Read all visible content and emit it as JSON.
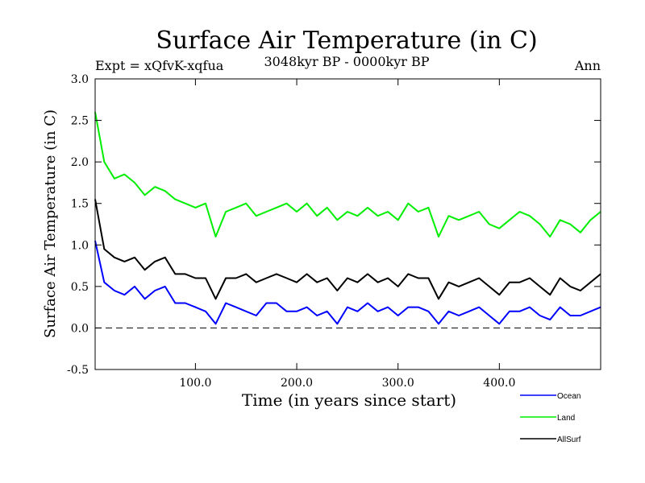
{
  "chart_data": {
    "type": "line",
    "title": "Surface Air Temperature (in C)",
    "subtitle": "3048kyr BP - 0000kyr BP",
    "expt_label": "Expt = xQfvK-xqfua",
    "season_label": "Ann",
    "xlabel": "Time (in years since start)",
    "ylabel": "Surface Air Temperature (in C)",
    "xlim": [
      1,
      500
    ],
    "ylim": [
      -0.5,
      3.0
    ],
    "x_ticks": [
      100,
      200,
      300,
      400
    ],
    "x_tick_labels": [
      "100.0",
      "200.0",
      "300.0",
      "400.0"
    ],
    "y_ticks": [
      -0.5,
      0.0,
      0.5,
      1.0,
      1.5,
      2.0,
      2.5,
      3.0
    ],
    "y_tick_labels": [
      "-0.5",
      "0.0",
      "0.5",
      "1.0",
      "1.5",
      "2.0",
      "2.5",
      "3.0"
    ],
    "reference_line": {
      "y": 0.0,
      "style": "dashed"
    },
    "x": [
      1,
      10,
      20,
      30,
      40,
      50,
      60,
      70,
      80,
      90,
      100,
      110,
      120,
      130,
      140,
      150,
      160,
      170,
      180,
      190,
      200,
      210,
      220,
      230,
      240,
      250,
      260,
      270,
      280,
      290,
      300,
      310,
      320,
      330,
      340,
      350,
      360,
      370,
      380,
      390,
      400,
      410,
      420,
      430,
      440,
      450,
      460,
      470,
      480,
      490,
      500
    ],
    "series": [
      {
        "name": "Ocean",
        "color": "#0000ff",
        "values": [
          1.05,
          0.55,
          0.45,
          0.4,
          0.5,
          0.35,
          0.45,
          0.5,
          0.3,
          0.3,
          0.25,
          0.2,
          0.05,
          0.3,
          0.25,
          0.2,
          0.15,
          0.3,
          0.3,
          0.2,
          0.2,
          0.25,
          0.15,
          0.2,
          0.05,
          0.25,
          0.2,
          0.3,
          0.2,
          0.25,
          0.15,
          0.25,
          0.25,
          0.2,
          0.05,
          0.2,
          0.15,
          0.2,
          0.25,
          0.15,
          0.05,
          0.2,
          0.2,
          0.25,
          0.15,
          0.1,
          0.25,
          0.15,
          0.15,
          0.2,
          0.25
        ]
      },
      {
        "name": "Land",
        "color": "#00ee00",
        "values": [
          2.6,
          2.0,
          1.8,
          1.85,
          1.75,
          1.6,
          1.7,
          1.65,
          1.55,
          1.5,
          1.45,
          1.5,
          1.1,
          1.4,
          1.45,
          1.5,
          1.35,
          1.4,
          1.45,
          1.5,
          1.4,
          1.5,
          1.35,
          1.45,
          1.3,
          1.4,
          1.35,
          1.45,
          1.35,
          1.4,
          1.3,
          1.5,
          1.4,
          1.45,
          1.1,
          1.35,
          1.3,
          1.35,
          1.4,
          1.25,
          1.2,
          1.3,
          1.4,
          1.35,
          1.25,
          1.1,
          1.3,
          1.25,
          1.15,
          1.3,
          1.4
        ]
      },
      {
        "name": "AllSurf",
        "color": "#000000",
        "values": [
          1.55,
          0.95,
          0.85,
          0.8,
          0.85,
          0.7,
          0.8,
          0.85,
          0.65,
          0.65,
          0.6,
          0.6,
          0.35,
          0.6,
          0.6,
          0.65,
          0.55,
          0.6,
          0.65,
          0.6,
          0.55,
          0.65,
          0.55,
          0.6,
          0.45,
          0.6,
          0.55,
          0.65,
          0.55,
          0.6,
          0.5,
          0.65,
          0.6,
          0.6,
          0.35,
          0.55,
          0.5,
          0.55,
          0.6,
          0.5,
          0.4,
          0.55,
          0.55,
          0.6,
          0.5,
          0.4,
          0.6,
          0.5,
          0.45,
          0.55,
          0.65
        ]
      }
    ],
    "legend_position": "bottom-right"
  }
}
